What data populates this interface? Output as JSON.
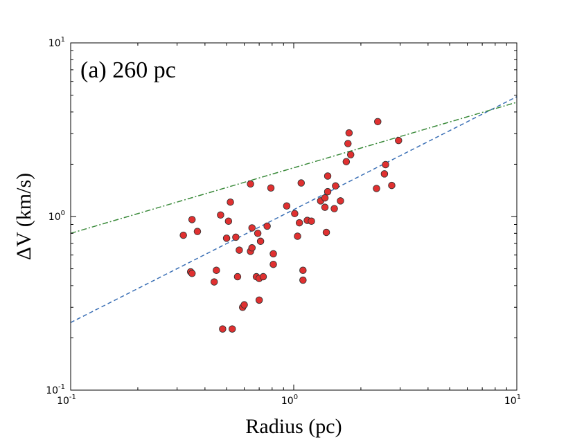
{
  "chart_data": {
    "type": "scatter",
    "panel_label": "(a) 260 pc",
    "xlabel": "Radius (pc)",
    "ylabel": "ΔV (km/s)",
    "xscale": "log",
    "yscale": "log",
    "xlim": [
      0.1,
      10
    ],
    "ylim": [
      0.1,
      10
    ],
    "grid": false,
    "x_ticks": [
      {
        "value": 0.1,
        "base": "10",
        "exp": "-1"
      },
      {
        "value": 1,
        "base": "10",
        "exp": "0"
      },
      {
        "value": 10,
        "base": "10",
        "exp": "1"
      }
    ],
    "y_ticks": [
      {
        "value": 0.1,
        "base": "10",
        "exp": "-1"
      },
      {
        "value": 1,
        "base": "10",
        "exp": "0"
      },
      {
        "value": 10,
        "base": "10",
        "exp": "1"
      }
    ],
    "colors": {
      "marker_fill": "#e03030",
      "marker_edge": "#333333",
      "dashed_fit": "#3a6fb5",
      "dashdot_fit": "#3a8a3a"
    },
    "lines": [
      {
        "style": "dashed",
        "color": "#3a6fb5",
        "points": [
          [
            0.1,
            0.245
          ],
          [
            10,
            4.9
          ]
        ]
      },
      {
        "style": "dashdot",
        "color": "#3a8a3a",
        "points": [
          [
            0.1,
            0.8
          ],
          [
            10,
            4.55
          ]
        ]
      }
    ],
    "points": [
      [
        0.32,
        0.78
      ],
      [
        0.35,
        0.96
      ],
      [
        0.37,
        0.82
      ],
      [
        0.345,
        0.48
      ],
      [
        0.35,
        0.47
      ],
      [
        0.45,
        0.49
      ],
      [
        0.44,
        0.42
      ],
      [
        0.47,
        1.02
      ],
      [
        0.48,
        0.225
      ],
      [
        0.5,
        0.75
      ],
      [
        0.51,
        0.94
      ],
      [
        0.52,
        1.21
      ],
      [
        0.53,
        0.225
      ],
      [
        0.55,
        0.76
      ],
      [
        0.56,
        0.45
      ],
      [
        0.57,
        0.64
      ],
      [
        0.59,
        0.3
      ],
      [
        0.6,
        0.31
      ],
      [
        0.64,
        1.54
      ],
      [
        0.64,
        0.63
      ],
      [
        0.65,
        0.66
      ],
      [
        0.65,
        0.86
      ],
      [
        0.68,
        0.45
      ],
      [
        0.69,
        0.8
      ],
      [
        0.7,
        0.44
      ],
      [
        0.7,
        0.33
      ],
      [
        0.71,
        0.72
      ],
      [
        0.73,
        0.45
      ],
      [
        0.76,
        0.88
      ],
      [
        0.79,
        1.46
      ],
      [
        0.81,
        0.61
      ],
      [
        0.81,
        0.53
      ],
      [
        0.93,
        1.15
      ],
      [
        1.01,
        1.04
      ],
      [
        1.04,
        0.77
      ],
      [
        1.06,
        0.92
      ],
      [
        1.08,
        1.56
      ],
      [
        1.1,
        0.49
      ],
      [
        1.1,
        0.43
      ],
      [
        1.15,
        0.95
      ],
      [
        1.2,
        0.94
      ],
      [
        1.32,
        1.23
      ],
      [
        1.38,
        1.28
      ],
      [
        1.38,
        1.13
      ],
      [
        1.4,
        0.81
      ],
      [
        1.42,
        1.39
      ],
      [
        1.42,
        1.71
      ],
      [
        1.52,
        1.11
      ],
      [
        1.54,
        1.5
      ],
      [
        1.62,
        1.23
      ],
      [
        1.72,
        2.07
      ],
      [
        1.75,
        2.63
      ],
      [
        1.77,
        3.03
      ],
      [
        1.8,
        2.27
      ],
      [
        2.35,
        1.45
      ],
      [
        2.38,
        3.52
      ],
      [
        2.55,
        1.76
      ],
      [
        2.58,
        1.99
      ],
      [
        2.75,
        1.51
      ],
      [
        2.95,
        2.74
      ]
    ]
  }
}
